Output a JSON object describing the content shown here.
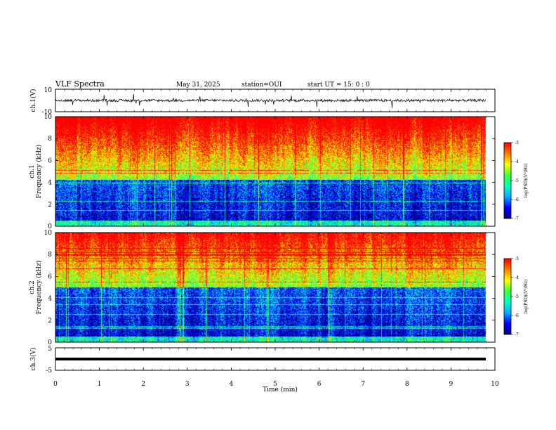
{
  "header": {
    "title": "VLF Spectra",
    "date": "May 31, 2025",
    "station": "station=OUI",
    "start": "start  UT =   15: 0  : 0"
  },
  "chart_data": [
    {
      "type": "line",
      "panel": "waveform-top",
      "ylabel": "ch.1(V)",
      "ylim": [
        -10,
        10
      ],
      "yticks": [
        "10",
        "-10"
      ],
      "series": [
        {
          "values_summary": "noisy signal around 0 V with spikes",
          "baseline": 0
        }
      ],
      "color": "#000000"
    },
    {
      "type": "heatmap",
      "panel": "spectrogram-ch1",
      "ylabel_line1": "ch.1",
      "ylabel_line2": "Frequency (kHz)",
      "ylim": [
        0,
        10
      ],
      "yticks": [
        "0",
        "2",
        "4",
        "6",
        "8",
        "10"
      ],
      "xlim": [
        0,
        10
      ],
      "colorbar": {
        "label": "log(PSD)(V²/Hz)",
        "range": [
          -7,
          -3
        ],
        "ticks": [
          "-3",
          "-4",
          "-5",
          "-6",
          "-7"
        ]
      },
      "boundary_khz": 4.2
    },
    {
      "type": "heatmap",
      "panel": "spectrogram-ch2",
      "ylabel_line1": "ch.2",
      "ylabel_line2": "Frequency (kHz)",
      "ylim": [
        0,
        10
      ],
      "yticks": [
        "0",
        "2",
        "4",
        "6",
        "8",
        "10"
      ],
      "xlim": [
        0,
        10
      ],
      "colorbar": {
        "label": "log(PSD)(V²/Hz)",
        "range": [
          -7,
          -3
        ],
        "ticks": [
          "-3",
          "-4",
          "-5",
          "-6",
          "-7"
        ]
      },
      "boundary_khz": 5.0
    },
    {
      "type": "line",
      "panel": "waveform-bottom",
      "ylabel": "ch.3(V)",
      "ylim": [
        -5,
        5
      ],
      "yticks": [
        "5",
        "-5"
      ],
      "series": [
        {
          "values_summary": "flat thick line",
          "constant": 0
        }
      ],
      "color": "#000000"
    }
  ],
  "xaxis": {
    "label": "Time (min)",
    "ticks": [
      "0",
      "1",
      "2",
      "3",
      "4",
      "5",
      "6",
      "7",
      "8",
      "9",
      "10"
    ],
    "xlim": [
      0,
      10
    ]
  },
  "colors": {
    "colormap": [
      "#000080",
      "#0000ff",
      "#00b0ff",
      "#00ffc0",
      "#40ff40",
      "#ffff00",
      "#ff8000",
      "#ff0000"
    ]
  }
}
